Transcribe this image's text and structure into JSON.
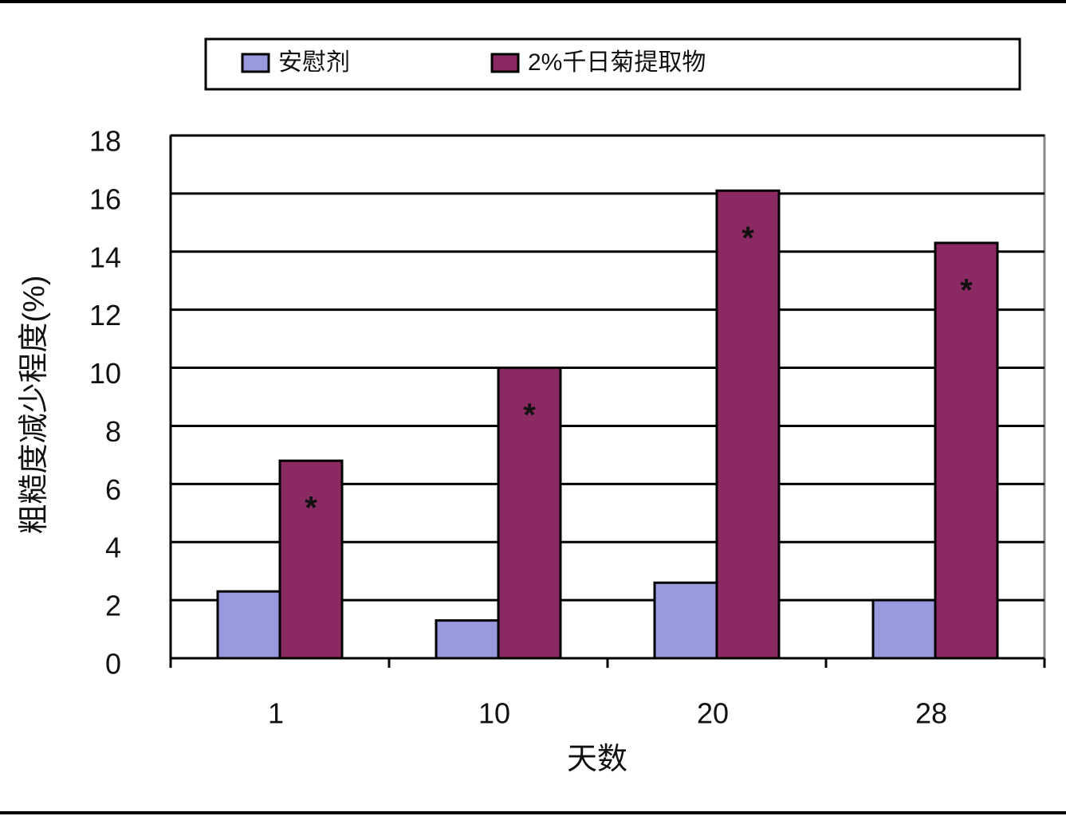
{
  "chart_data": {
    "type": "bar",
    "x_label": "天数",
    "y_label": "粗糙度减少程度(%)",
    "categories": [
      "1",
      "10",
      "20",
      "28"
    ],
    "series": [
      {
        "name": "安慰剂",
        "color": "#9999dd",
        "values": [
          2.3,
          1.3,
          2.6,
          2.0
        ]
      },
      {
        "name": "2%千日菊提取物",
        "color": "#8b2a62",
        "values": [
          6.8,
          10.0,
          16.1,
          14.3
        ],
        "annotations": [
          "*",
          "*",
          "*",
          "*"
        ]
      }
    ],
    "ylim": [
      0,
      18
    ],
    "yticks": [
      0,
      2,
      4,
      6,
      8,
      10,
      12,
      14,
      16,
      18
    ],
    "grid": true,
    "legend": "top"
  }
}
